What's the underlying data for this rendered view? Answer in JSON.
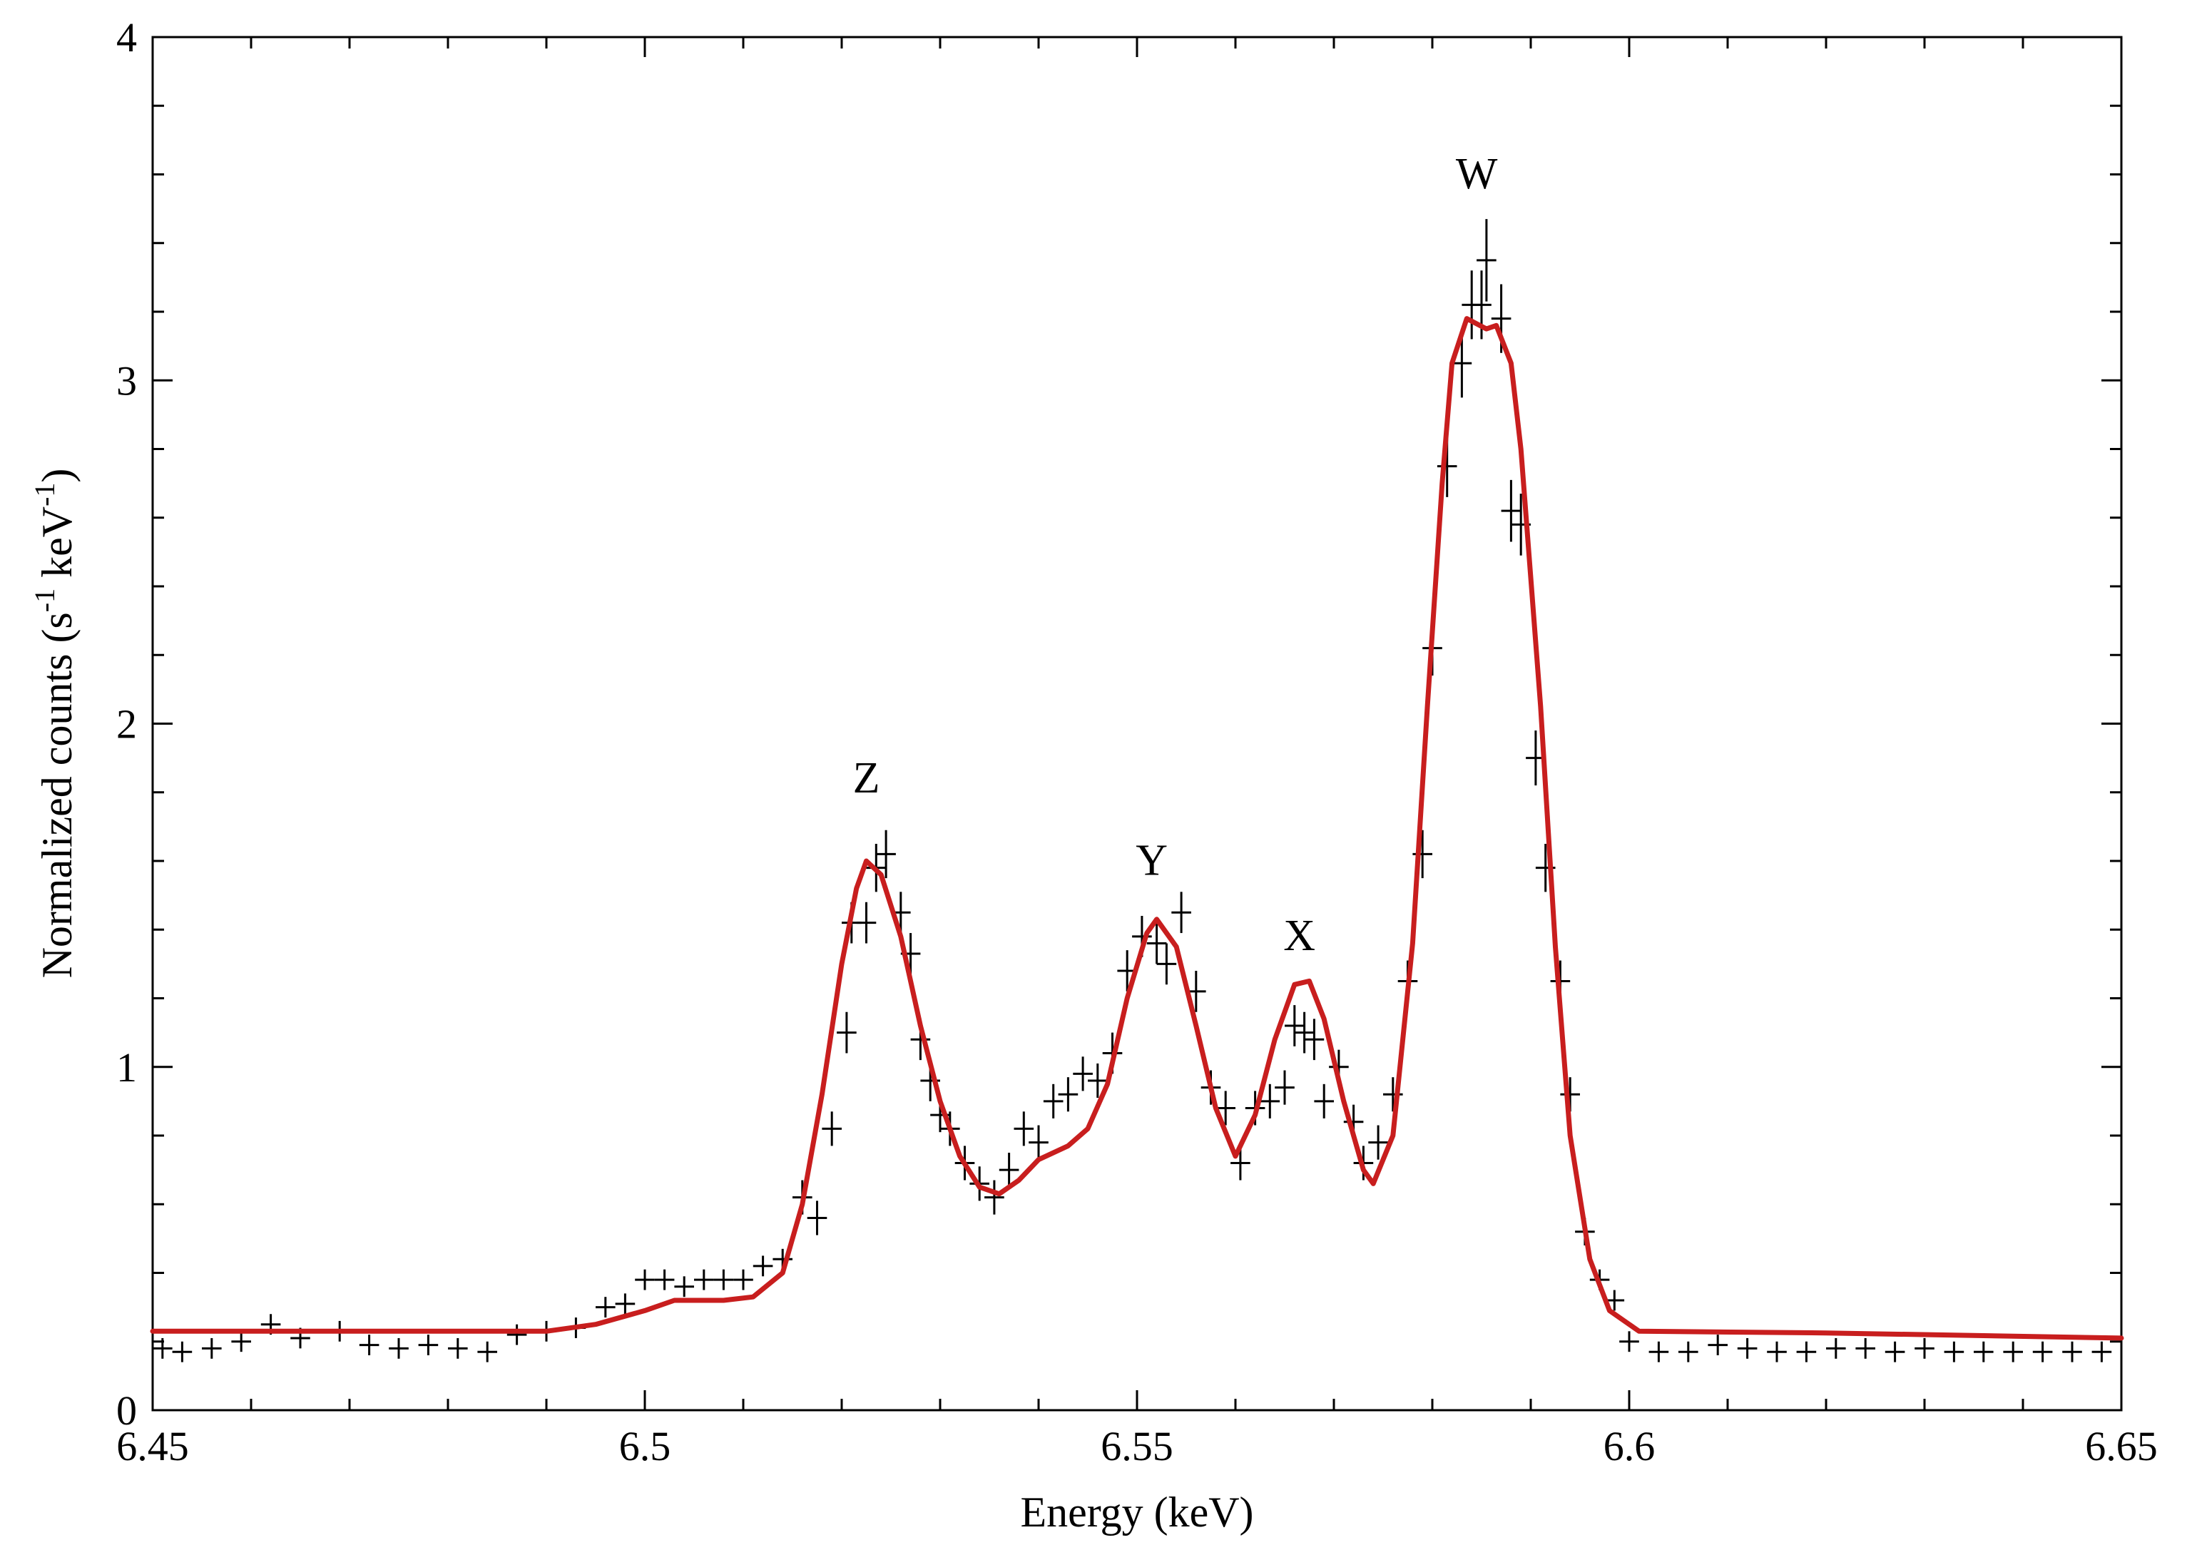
{
  "chart_data": {
    "type": "line",
    "title": "",
    "xlabel": "Energy (keV)",
    "ylabel": {
      "prefix": "Normalized counts (s",
      "sup1": "-1",
      "middle": " keV",
      "sup2": "-1",
      "suffix": ")"
    },
    "xlim": [
      6.45,
      6.65
    ],
    "ylim": [
      0,
      4
    ],
    "x_ticks": [
      6.45,
      6.5,
      6.55,
      6.6,
      6.65
    ],
    "x_tick_labels": [
      "6.45",
      "6.5",
      "6.55",
      "6.6",
      "6.65"
    ],
    "y_ticks": [
      0,
      1,
      2,
      3,
      4
    ],
    "y_tick_labels": [
      "0",
      "1",
      "2",
      "3",
      "4"
    ],
    "grid": false,
    "colors": {
      "data": "#000000",
      "model": "#c81e1e"
    },
    "annotations": [
      {
        "text": "Z",
        "x": 6.5225,
        "y": 1.8
      },
      {
        "text": "Y",
        "x": 6.5515,
        "y": 1.56
      },
      {
        "text": "X",
        "x": 6.5665,
        "y": 1.34
      },
      {
        "text": "W",
        "x": 6.5845,
        "y": 3.56
      }
    ],
    "series": [
      {
        "kind": "data",
        "x_halfwidth": 0.001,
        "points": [
          [
            6.451,
            0.18,
            0.03
          ],
          [
            6.453,
            0.17,
            0.03
          ],
          [
            6.456,
            0.18,
            0.03
          ],
          [
            6.459,
            0.2,
            0.03
          ],
          [
            6.462,
            0.25,
            0.03
          ],
          [
            6.465,
            0.21,
            0.03
          ],
          [
            6.469,
            0.23,
            0.03
          ],
          [
            6.472,
            0.19,
            0.03
          ],
          [
            6.475,
            0.18,
            0.03
          ],
          [
            6.478,
            0.19,
            0.03
          ],
          [
            6.481,
            0.18,
            0.03
          ],
          [
            6.484,
            0.17,
            0.03
          ],
          [
            6.487,
            0.22,
            0.03
          ],
          [
            6.49,
            0.23,
            0.03
          ],
          [
            6.493,
            0.24,
            0.03
          ],
          [
            6.496,
            0.3,
            0.03
          ],
          [
            6.498,
            0.31,
            0.03
          ],
          [
            6.5,
            0.38,
            0.03
          ],
          [
            6.502,
            0.38,
            0.03
          ],
          [
            6.504,
            0.36,
            0.03
          ],
          [
            6.506,
            0.38,
            0.03
          ],
          [
            6.508,
            0.38,
            0.03
          ],
          [
            6.51,
            0.38,
            0.03
          ],
          [
            6.512,
            0.42,
            0.03
          ],
          [
            6.514,
            0.44,
            0.03
          ],
          [
            6.516,
            0.62,
            0.05
          ],
          [
            6.5175,
            0.56,
            0.05
          ],
          [
            6.519,
            0.82,
            0.05
          ],
          [
            6.5205,
            1.1,
            0.06
          ],
          [
            6.521,
            1.42,
            0.06
          ],
          [
            6.5225,
            1.42,
            0.06
          ],
          [
            6.5235,
            1.58,
            0.07
          ],
          [
            6.5245,
            1.62,
            0.07
          ],
          [
            6.526,
            1.45,
            0.06
          ],
          [
            6.527,
            1.33,
            0.06
          ],
          [
            6.528,
            1.08,
            0.06
          ],
          [
            6.529,
            0.96,
            0.06
          ],
          [
            6.53,
            0.86,
            0.05
          ],
          [
            6.531,
            0.82,
            0.05
          ],
          [
            6.5325,
            0.72,
            0.05
          ],
          [
            6.534,
            0.66,
            0.05
          ],
          [
            6.5355,
            0.62,
            0.05
          ],
          [
            6.537,
            0.7,
            0.05
          ],
          [
            6.5385,
            0.82,
            0.05
          ],
          [
            6.54,
            0.78,
            0.05
          ],
          [
            6.5415,
            0.9,
            0.05
          ],
          [
            6.543,
            0.92,
            0.05
          ],
          [
            6.5445,
            0.98,
            0.05
          ],
          [
            6.546,
            0.96,
            0.05
          ],
          [
            6.5475,
            1.04,
            0.06
          ],
          [
            6.549,
            1.28,
            0.06
          ],
          [
            6.5505,
            1.38,
            0.06
          ],
          [
            6.552,
            1.36,
            0.06
          ],
          [
            6.553,
            1.3,
            0.06
          ],
          [
            6.5545,
            1.45,
            0.06
          ],
          [
            6.556,
            1.22,
            0.06
          ],
          [
            6.5575,
            0.94,
            0.05
          ],
          [
            6.559,
            0.88,
            0.05
          ],
          [
            6.5605,
            0.72,
            0.05
          ],
          [
            6.562,
            0.88,
            0.05
          ],
          [
            6.5635,
            0.9,
            0.05
          ],
          [
            6.565,
            0.94,
            0.05
          ],
          [
            6.566,
            1.12,
            0.06
          ],
          [
            6.567,
            1.1,
            0.06
          ],
          [
            6.568,
            1.08,
            0.06
          ],
          [
            6.569,
            0.9,
            0.05
          ],
          [
            6.5705,
            1.0,
            0.05
          ],
          [
            6.572,
            0.84,
            0.05
          ],
          [
            6.573,
            0.72,
            0.05
          ],
          [
            6.5745,
            0.78,
            0.05
          ],
          [
            6.576,
            0.92,
            0.05
          ],
          [
            6.5775,
            1.25,
            0.06
          ],
          [
            6.579,
            1.62,
            0.07
          ],
          [
            6.58,
            2.22,
            0.08
          ],
          [
            6.5815,
            2.75,
            0.09
          ],
          [
            6.583,
            3.05,
            0.1
          ],
          [
            6.584,
            3.22,
            0.1
          ],
          [
            6.585,
            3.22,
            0.1
          ],
          [
            6.5855,
            3.35,
            0.12
          ],
          [
            6.587,
            3.18,
            0.1
          ],
          [
            6.588,
            2.62,
            0.09
          ],
          [
            6.589,
            2.58,
            0.09
          ],
          [
            6.5905,
            1.9,
            0.08
          ],
          [
            6.5915,
            1.58,
            0.07
          ],
          [
            6.593,
            1.25,
            0.06
          ],
          [
            6.594,
            0.92,
            0.05
          ],
          [
            6.5955,
            0.52,
            0.04
          ],
          [
            6.597,
            0.38,
            0.03
          ],
          [
            6.5985,
            0.32,
            0.03
          ],
          [
            6.6,
            0.2,
            0.03
          ],
          [
            6.603,
            0.17,
            0.03
          ],
          [
            6.606,
            0.17,
            0.03
          ],
          [
            6.609,
            0.19,
            0.03
          ],
          [
            6.612,
            0.18,
            0.03
          ],
          [
            6.615,
            0.17,
            0.03
          ],
          [
            6.618,
            0.17,
            0.03
          ],
          [
            6.621,
            0.18,
            0.03
          ],
          [
            6.624,
            0.18,
            0.03
          ],
          [
            6.627,
            0.17,
            0.03
          ],
          [
            6.63,
            0.18,
            0.03
          ],
          [
            6.633,
            0.17,
            0.03
          ],
          [
            6.636,
            0.17,
            0.03
          ],
          [
            6.639,
            0.17,
            0.03
          ],
          [
            6.642,
            0.17,
            0.03
          ],
          [
            6.645,
            0.17,
            0.03
          ],
          [
            6.648,
            0.17,
            0.03
          ]
        ]
      },
      {
        "kind": "model",
        "points": [
          [
            6.45,
            0.23
          ],
          [
            6.49,
            0.23
          ],
          [
            6.495,
            0.25
          ],
          [
            6.5,
            0.29
          ],
          [
            6.503,
            0.32
          ],
          [
            6.508,
            0.32
          ],
          [
            6.511,
            0.33
          ],
          [
            6.514,
            0.4
          ],
          [
            6.516,
            0.6
          ],
          [
            6.518,
            0.92
          ],
          [
            6.52,
            1.3
          ],
          [
            6.5215,
            1.52
          ],
          [
            6.5225,
            1.6
          ],
          [
            6.524,
            1.56
          ],
          [
            6.526,
            1.38
          ],
          [
            6.528,
            1.12
          ],
          [
            6.53,
            0.9
          ],
          [
            6.532,
            0.74
          ],
          [
            6.534,
            0.65
          ],
          [
            6.536,
            0.63
          ],
          [
            6.538,
            0.67
          ],
          [
            6.54,
            0.73
          ],
          [
            6.543,
            0.77
          ],
          [
            6.545,
            0.82
          ],
          [
            6.547,
            0.95
          ],
          [
            6.549,
            1.2
          ],
          [
            6.551,
            1.39
          ],
          [
            6.552,
            1.43
          ],
          [
            6.554,
            1.35
          ],
          [
            6.556,
            1.12
          ],
          [
            6.558,
            0.88
          ],
          [
            6.56,
            0.74
          ],
          [
            6.562,
            0.86
          ],
          [
            6.564,
            1.08
          ],
          [
            6.566,
            1.24
          ],
          [
            6.5675,
            1.25
          ],
          [
            6.569,
            1.14
          ],
          [
            6.571,
            0.9
          ],
          [
            6.573,
            0.7
          ],
          [
            6.574,
            0.66
          ],
          [
            6.576,
            0.8
          ],
          [
            6.578,
            1.36
          ],
          [
            6.5795,
            2.05
          ],
          [
            6.581,
            2.7
          ],
          [
            6.582,
            3.05
          ],
          [
            6.5835,
            3.18
          ],
          [
            6.5855,
            3.15
          ],
          [
            6.5865,
            3.16
          ],
          [
            6.588,
            3.05
          ],
          [
            6.589,
            2.8
          ],
          [
            6.591,
            2.05
          ],
          [
            6.5925,
            1.35
          ],
          [
            6.594,
            0.8
          ],
          [
            6.596,
            0.44
          ],
          [
            6.598,
            0.29
          ],
          [
            6.601,
            0.23
          ],
          [
            6.62,
            0.225
          ],
          [
            6.65,
            0.21
          ]
        ]
      }
    ]
  }
}
